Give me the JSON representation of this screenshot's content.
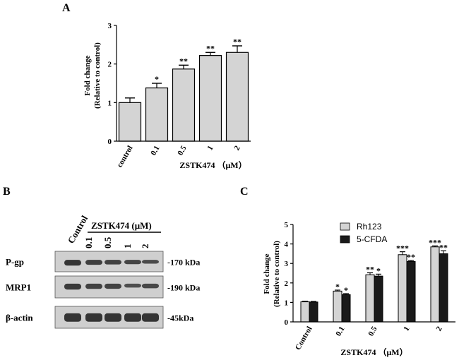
{
  "panels": {
    "a": {
      "letter": "A"
    },
    "b": {
      "letter": "B"
    },
    "c": {
      "letter": "C"
    }
  },
  "colors": {
    "bar_gray": "#d4d4d4",
    "bar_black": "#1a1a1a",
    "axis": "#000000",
    "blot_bg": "#cfcfcf",
    "band": "#2b2b2b"
  },
  "chart_data": [
    {
      "id": "panel-a",
      "type": "bar",
      "categories": [
        "control",
        "0.1",
        "0.5",
        "1",
        "2"
      ],
      "values": [
        1.0,
        1.38,
        1.87,
        2.22,
        2.3
      ],
      "errors": [
        0.12,
        0.12,
        0.1,
        0.08,
        0.17
      ],
      "significance": [
        "",
        "*",
        "**",
        "**",
        "**"
      ],
      "xlabel": "ZSTK474 （μM）",
      "ylabel_line1": "Fold change",
      "ylabel_line2": "(Relative to control)",
      "ylim": [
        0,
        3
      ],
      "yticks": [
        0,
        1,
        2,
        3
      ]
    },
    {
      "id": "panel-c",
      "type": "bar",
      "categories": [
        "Control",
        "0.1",
        "0.5",
        "1",
        "2"
      ],
      "series": [
        {
          "name": "Rh123",
          "values": [
            1.03,
            1.58,
            2.42,
            3.45,
            3.85
          ],
          "errors": [
            0.03,
            0.05,
            0.1,
            0.15,
            0.05
          ],
          "significance": [
            "",
            "*",
            "**",
            "***",
            "***"
          ]
        },
        {
          "name": "5-CFDA",
          "values": [
            1.02,
            1.4,
            2.35,
            3.1,
            3.5
          ],
          "errors": [
            0.03,
            0.05,
            0.1,
            0.05,
            0.15
          ],
          "significance": [
            "",
            "*",
            "*",
            "**",
            "**"
          ]
        }
      ],
      "xlabel": "ZSTK474 （μM）",
      "ylabel_line1": "Fold change",
      "ylabel_line2": "(Relative to control)",
      "ylim": [
        0,
        5
      ],
      "yticks": [
        0,
        1,
        2,
        3,
        4,
        5
      ],
      "legend": "top-left"
    }
  ],
  "blot": {
    "control_label": "Control",
    "treatment_label": "ZSTK474 (μM)",
    "doses": [
      "0.1",
      "0.5",
      "1",
      "2"
    ],
    "rows": [
      {
        "label": "P-gp",
        "kda": "-170 kDa"
      },
      {
        "label": "MRP1",
        "kda": "-190 kDa"
      },
      {
        "label": "β-actin",
        "kda": "-45kDa"
      }
    ]
  }
}
